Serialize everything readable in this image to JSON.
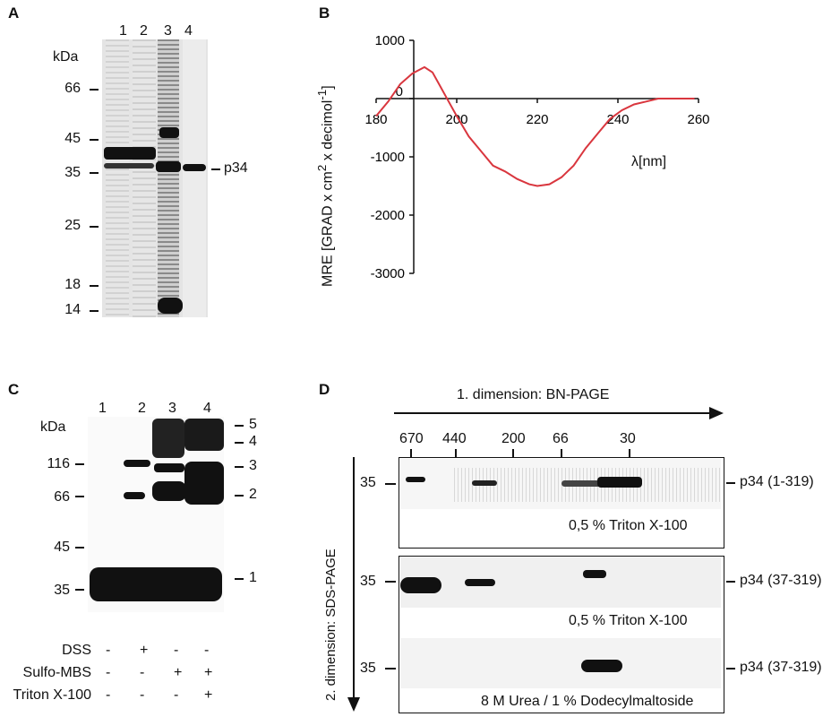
{
  "panelA": {
    "letter": "A",
    "lanes": [
      "1",
      "2",
      "3",
      "4"
    ],
    "unit": "kDa",
    "markers": [
      "66",
      "45",
      "35",
      "25",
      "18",
      "14"
    ],
    "band_label": "p34"
  },
  "panelB": {
    "letter": "B",
    "ylabel_pre": "MRE [GRAD x cm",
    "ylabel_sup1": "2",
    "ylabel_mid": " x decimol",
    "ylabel_sup2": "-1",
    "ylabel_post": "]",
    "xlabel": "λ[nm]",
    "chart_data": {
      "type": "line",
      "xlabel": "λ[nm]",
      "ylabel": "MRE [GRAD x cm2 x decimol-1]",
      "x_ticks": [
        180,
        200,
        220,
        240,
        260
      ],
      "y_ticks": [
        1000,
        0,
        -1000,
        -2000,
        -3000
      ],
      "xlim": [
        180,
        260
      ],
      "ylim": [
        -3000,
        1000
      ],
      "color": "#d9363e",
      "x": [
        180,
        183,
        186,
        189,
        192,
        194,
        196,
        198,
        200,
        203,
        206,
        209,
        212,
        215,
        218,
        220,
        223,
        226,
        229,
        232,
        235,
        238,
        241,
        244,
        247,
        250,
        253,
        256,
        259
      ],
      "y": [
        -300,
        -50,
        250,
        430,
        540,
        450,
        200,
        -50,
        -300,
        -650,
        -900,
        -1150,
        -1250,
        -1380,
        -1470,
        -1500,
        -1470,
        -1350,
        -1150,
        -850,
        -600,
        -350,
        -200,
        -100,
        -50,
        0,
        0,
        0,
        0
      ]
    }
  },
  "panelC": {
    "letter": "C",
    "lanes": [
      "1",
      "2",
      "3",
      "4"
    ],
    "unit": "kDa",
    "markers": [
      "116",
      "66",
      "45",
      "35"
    ],
    "bands_right": [
      "5",
      "4",
      "3",
      "2",
      "1"
    ],
    "conditions": [
      {
        "name": "DSS",
        "values": [
          "-",
          "+",
          "-",
          "-"
        ]
      },
      {
        "name": "Sulfo-MBS",
        "values": [
          "-",
          "-",
          "+",
          "+"
        ]
      },
      {
        "name": "Triton X-100",
        "values": [
          "-",
          "-",
          "-",
          "+"
        ]
      }
    ]
  },
  "panelD": {
    "letter": "D",
    "dim1": "1. dimension: BN-PAGE",
    "dim2": "2. dimension: SDS-PAGE",
    "markers": [
      "670",
      "440",
      "200",
      "66",
      "30"
    ],
    "gels": [
      {
        "marker": "35",
        "label": "p34 (1-319)",
        "detergent": "0,5 % Triton X-100"
      },
      {
        "marker": "35",
        "label": "p34 (37-319)",
        "detergent": "0,5 % Triton X-100"
      },
      {
        "marker": "35",
        "label": "p34 (37-319)",
        "detergent": "8 M Urea / 1 % Dodecylmaltoside"
      }
    ]
  }
}
